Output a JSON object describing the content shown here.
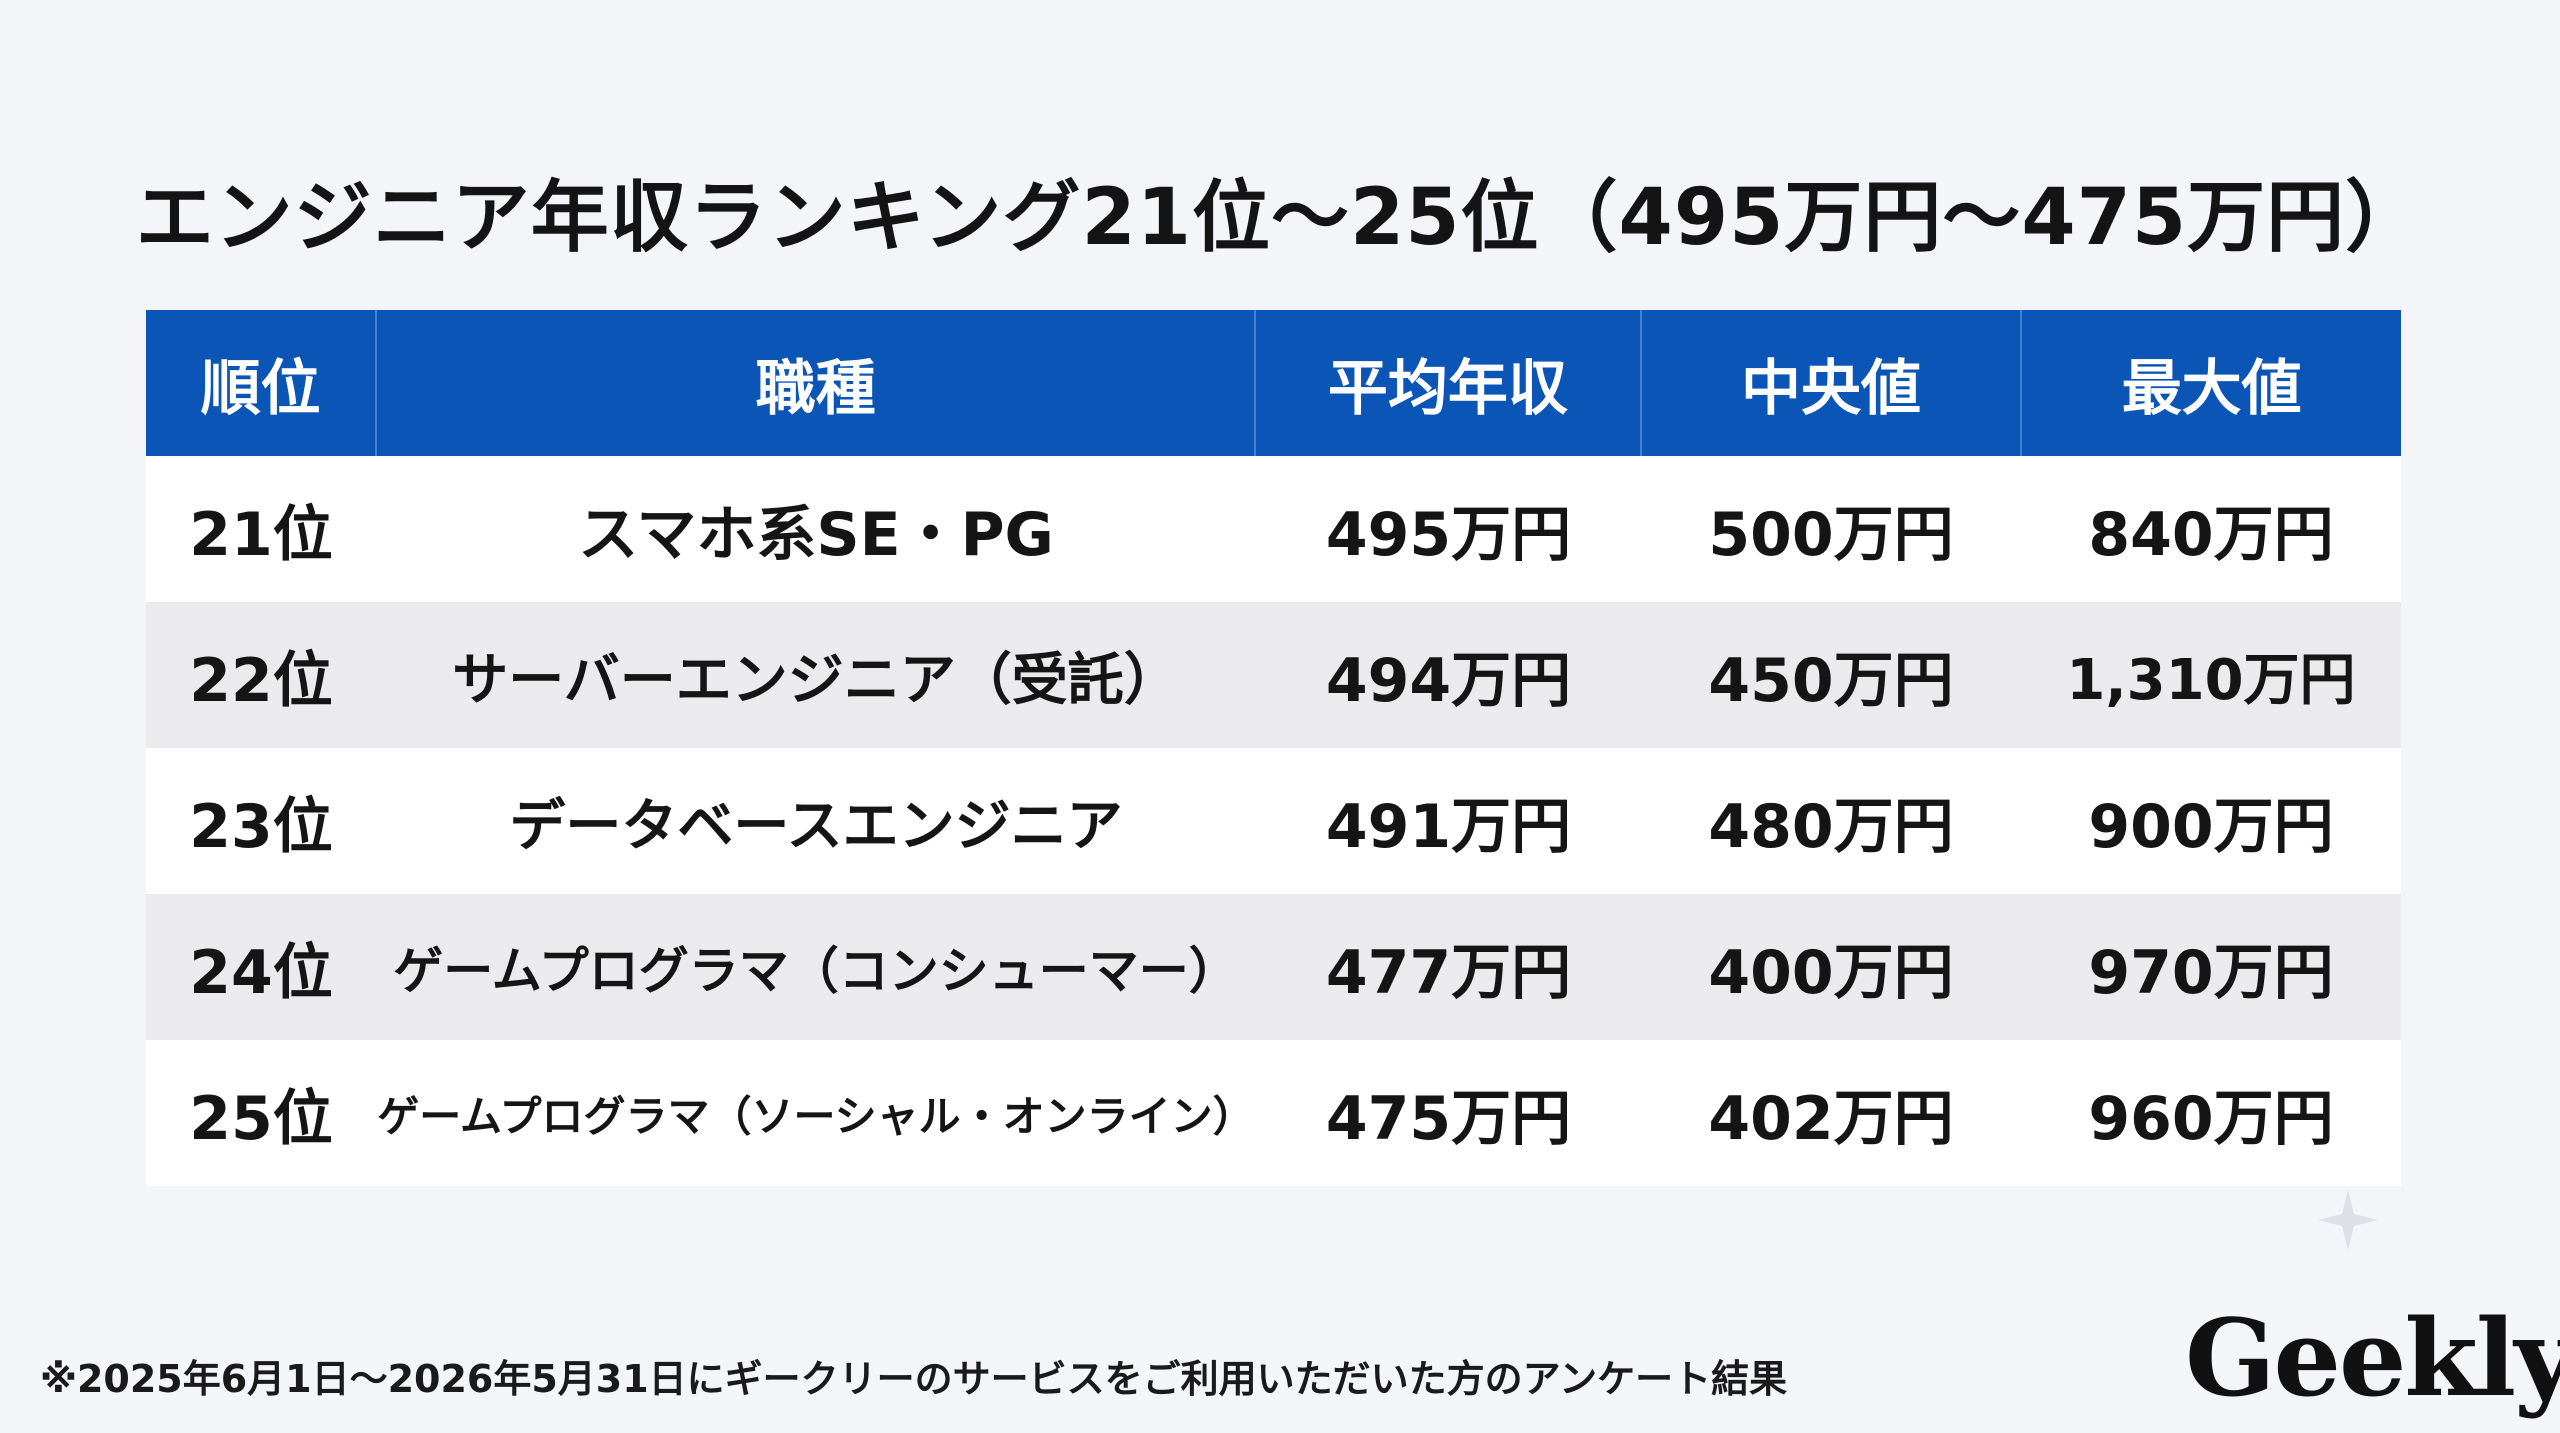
{
  "title": "エンジニア年収ランキング21位〜25位（495万円〜475万円）",
  "chart_data": {
    "type": "table",
    "columns": [
      "順位",
      "職種",
      "平均年収",
      "中央値",
      "最大値"
    ],
    "rows": [
      [
        "21位",
        "スマホ系SE・PG",
        "495万円",
        "500万円",
        "840万円"
      ],
      [
        "22位",
        "サーバーエンジニア（受託）",
        "494万円",
        "450万円",
        "1,310万円"
      ],
      [
        "23位",
        "データベースエンジニア",
        "491万円",
        "480万円",
        "900万円"
      ],
      [
        "24位",
        "ゲームプログラマ（コンシューマー）",
        "477万円",
        "400万円",
        "970万円"
      ],
      [
        "25位",
        "ゲームプログラマ（ソーシャル・オンライン）",
        "475万円",
        "402万円",
        "960万円"
      ]
    ]
  },
  "footnote": "※2025年6月1日〜2026年5月31日にギークリーのサービスをご利用いただいた方のアンケート結果",
  "logo": "Geekly",
  "colors": {
    "header_bg": "#0b55b7",
    "header_text": "#ffffff",
    "row_alt": "#ebebed",
    "row_plain": "#ffffff",
    "page_bg": "#f4f5f8"
  }
}
